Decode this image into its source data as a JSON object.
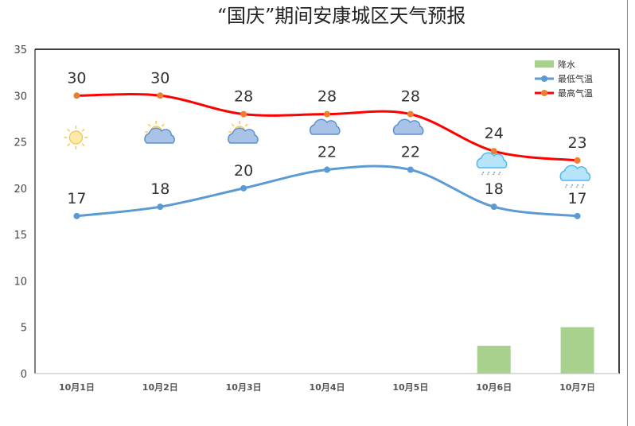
{
  "chart_data": {
    "type": "line+bar",
    "title": "“国庆”期间安康城区天气预报",
    "categories": [
      "10月1日",
      "10月2日",
      "10月3日",
      "10月4日",
      "10月5日",
      "10月6日",
      "10月7日"
    ],
    "ylim": [
      0,
      35
    ],
    "yticks": [
      0,
      5,
      10,
      15,
      20,
      25,
      30,
      35
    ],
    "grid": false,
    "legend_position": "top-right",
    "series": [
      {
        "name": "降水",
        "type": "bar",
        "color": "#a9d18e",
        "values": [
          0,
          0,
          0,
          0,
          0,
          3,
          5
        ]
      },
      {
        "name": "最低气温",
        "type": "line",
        "color": "#5b9bd5",
        "marker_color": "#5b9bd5",
        "values": [
          17,
          18,
          20,
          22,
          22,
          18,
          17
        ]
      },
      {
        "name": "最高气温",
        "type": "line",
        "color": "#ff0000",
        "marker_color": "#ed7d31",
        "values": [
          30,
          30,
          28,
          28,
          28,
          24,
          23
        ]
      }
    ],
    "weather_icons": [
      "sunny-icon",
      "partly-cloudy-icon",
      "partly-cloudy-icon",
      "cloudy-icon",
      "cloudy-icon",
      "rain-icon",
      "rain-icon"
    ]
  }
}
